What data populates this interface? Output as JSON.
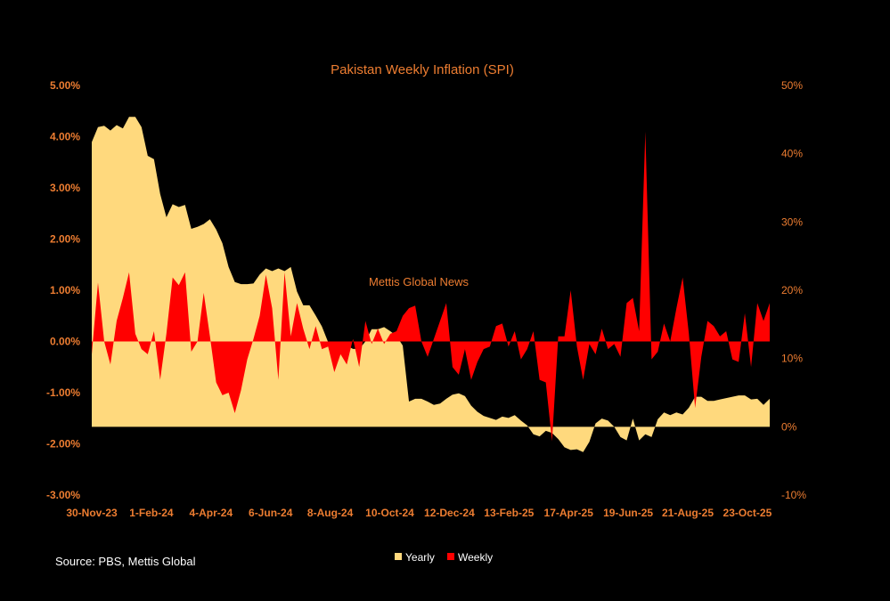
{
  "chart_data": {
    "type": "area",
    "title": "Pakistan Weekly Inflation (SPI)",
    "watermark": "Mettis Global News",
    "source": "Source: PBS, Mettis Global",
    "x_tick_labels": [
      "30-Nov-23",
      "1-Feb-24",
      "4-Apr-24",
      "6-Jun-24",
      "8-Aug-24",
      "10-Oct-24",
      "12-Dec-24",
      "13-Feb-25",
      "17-Apr-25",
      "19-Jun-25",
      "21-Aug-25",
      "23-Oct-25"
    ],
    "left_axis": {
      "ylim": [
        -3.0,
        5.0
      ],
      "tick_labels": [
        "5.00%",
        "4.00%",
        "3.00%",
        "2.00%",
        "1.00%",
        "0.00%",
        "-1.00%",
        "-2.00%",
        "-3.00%"
      ]
    },
    "right_axis": {
      "ylim": [
        -10,
        50
      ],
      "tick_labels": [
        "50%",
        "40%",
        "30%",
        "20%",
        "10%",
        "0%",
        "-10%"
      ]
    },
    "series": [
      {
        "name": "Weekly",
        "axis": "left",
        "color": "#FF0000",
        "values": [
          -0.25,
          1.15,
          0.0,
          -0.45,
          0.4,
          0.85,
          1.35,
          0.15,
          -0.15,
          -0.25,
          0.2,
          -0.75,
          0.15,
          1.25,
          1.1,
          1.35,
          -0.2,
          0.0,
          0.95,
          0.1,
          -0.8,
          -1.05,
          -1.0,
          -1.4,
          -0.95,
          -0.35,
          0.05,
          0.5,
          1.3,
          0.65,
          -0.75,
          1.35,
          0.1,
          0.75,
          0.25,
          -0.15,
          0.3,
          -0.15,
          -0.1,
          -0.6,
          -0.25,
          -0.45,
          0.05,
          -0.5,
          0.4,
          -0.05,
          0.25,
          -0.05,
          0.15,
          0.2,
          0.5,
          0.65,
          0.7,
          0.0,
          -0.3,
          0.05,
          0.4,
          0.75,
          -0.5,
          -0.65,
          -0.15,
          -0.75,
          -0.4,
          -0.15,
          -0.1,
          0.3,
          0.35,
          -0.1,
          0.2,
          -0.35,
          -0.15,
          0.2,
          -0.75,
          -0.8,
          -1.95,
          0.1,
          0.1,
          1.0,
          -0.1,
          -0.75,
          -0.05,
          -0.25,
          0.25,
          -0.15,
          -0.05,
          -0.3,
          0.75,
          0.85,
          0.2,
          4.1,
          -0.35,
          -0.2,
          0.35,
          0.0,
          0.65,
          1.25,
          0.15,
          -1.3,
          -0.3,
          0.4,
          0.3,
          0.1,
          0.2,
          -0.35,
          -0.4,
          0.55,
          -0.5,
          0.75,
          0.4,
          0.75
        ]
      },
      {
        "name": "Yearly",
        "axis": "right",
        "color": "#FFD97D",
        "values": [
          41.7,
          43.9,
          44.1,
          43.4,
          44.2,
          43.7,
          45.4,
          45.4,
          43.9,
          39.7,
          39.2,
          34.1,
          30.7,
          32.6,
          32.2,
          32.5,
          29.0,
          29.3,
          29.7,
          30.4,
          28.9,
          26.9,
          23.4,
          21.2,
          20.9,
          20.9,
          21.0,
          22.3,
          23.2,
          22.8,
          23.2,
          22.8,
          23.4,
          19.8,
          17.8,
          17.8,
          16.3,
          14.7,
          12.4,
          12.2,
          11.9,
          11.9,
          11.4,
          11.4,
          12.5,
          14.3,
          14.3,
          14.6,
          14.0,
          13.3,
          11.9,
          3.7,
          4.1,
          4.1,
          3.7,
          3.2,
          3.4,
          4.1,
          4.7,
          4.9,
          4.5,
          3.1,
          2.2,
          1.6,
          1.3,
          1.0,
          1.5,
          1.3,
          1.7,
          0.9,
          0.2,
          -1.1,
          -1.4,
          -0.6,
          -0.9,
          -1.8,
          -3.0,
          -3.4,
          -3.3,
          -3.7,
          -2.2,
          0.5,
          1.2,
          0.9,
          0.0,
          -1.5,
          -2.0,
          1.2,
          -2.0,
          -1.1,
          -1.5,
          1.1,
          2.1,
          1.7,
          2.1,
          1.8,
          2.8,
          4.4,
          4.4,
          3.8,
          3.8,
          4.0,
          4.2,
          4.4,
          4.6,
          4.6,
          4.0,
          4.1,
          3.2,
          4.1
        ]
      }
    ]
  }
}
